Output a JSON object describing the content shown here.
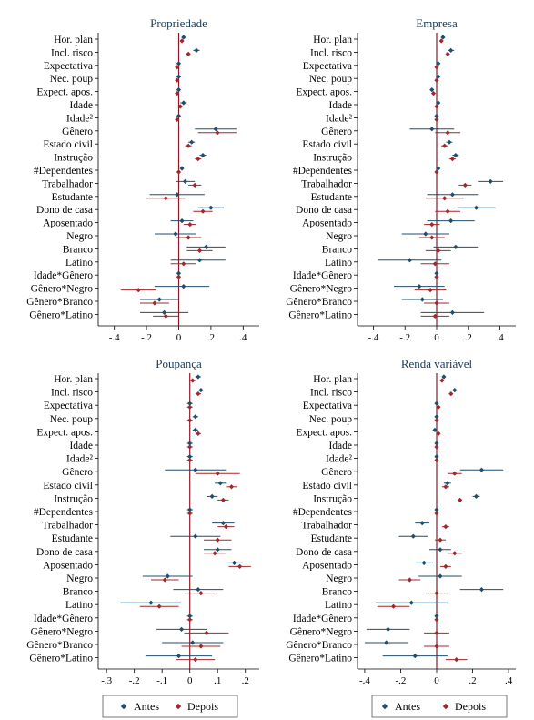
{
  "colors": {
    "antes": "#1f4e6e",
    "depois": "#a0282c",
    "zero_line": "#8b1a2b",
    "axis": "#000000"
  },
  "row_labels": [
    "Hor. plan",
    "Incl. risco",
    "Expectativa",
    "Nec. poup",
    "Expect. apos.",
    "Idade",
    "Idade²",
    "Gênero",
    "Estado civil",
    "Instrução",
    "#Dependentes",
    "Trabalhador",
    "Estudante",
    "Dono de casa",
    "Aposentado",
    "Negro",
    "Branco",
    "Latino",
    "Idade*Gênero",
    "Gênero*Negro",
    "Gênero*Branco",
    "Gênero*Latino"
  ],
  "legend": {
    "antes": "Antes",
    "depois": "Depois"
  },
  "chart_data": [
    {
      "type": "scatter",
      "title": "Propriedade",
      "xlim": [
        -0.5,
        0.5
      ],
      "xticks": [
        -0.4,
        -0.2,
        0,
        0.2,
        0.4
      ],
      "xtick_labels": [
        "-.4",
        "-.2",
        "0",
        ".2",
        ".4"
      ],
      "series": [
        {
          "name": "Antes",
          "values": [
            [
              0.03,
              0.02,
              0.04
            ],
            [
              0.11,
              0.09,
              0.13
            ],
            [
              0.0,
              -0.01,
              0.01
            ],
            [
              0.0,
              -0.01,
              0.01
            ],
            [
              0.0,
              -0.01,
              0.01
            ],
            [
              0.03,
              0.01,
              0.05
            ],
            [
              0.0,
              -0.01,
              0.01
            ],
            [
              0.23,
              0.1,
              0.36
            ],
            [
              0.08,
              0.06,
              0.1
            ],
            [
              0.15,
              0.13,
              0.17
            ],
            [
              0.02,
              0.01,
              0.03
            ],
            [
              0.04,
              -0.02,
              0.1
            ],
            [
              -0.01,
              -0.18,
              0.16
            ],
            [
              0.2,
              0.12,
              0.28
            ],
            [
              0.02,
              -0.05,
              0.09
            ],
            [
              -0.02,
              -0.15,
              0.11
            ],
            [
              0.17,
              0.05,
              0.29
            ],
            [
              0.13,
              -0.05,
              0.29
            ],
            [
              0.0,
              -0.01,
              0.01
            ],
            [
              0.03,
              -0.15,
              0.19
            ],
            [
              -0.12,
              -0.24,
              0.0
            ],
            [
              -0.09,
              -0.24,
              0.06
            ]
          ]
        },
        {
          "name": "Depois",
          "values": [
            [
              0.02,
              0.01,
              0.03
            ],
            [
              0.06,
              0.05,
              0.07
            ],
            [
              -0.01,
              -0.02,
              0.0
            ],
            [
              -0.01,
              -0.02,
              0.0
            ],
            [
              -0.01,
              -0.02,
              0.0
            ],
            [
              0.01,
              0.0,
              0.02
            ],
            [
              -0.01,
              -0.02,
              0.0
            ],
            [
              0.24,
              0.12,
              0.36
            ],
            [
              0.06,
              0.04,
              0.08
            ],
            [
              0.12,
              0.1,
              0.14
            ],
            [
              0.0,
              -0.01,
              0.01
            ],
            [
              0.1,
              0.06,
              0.14
            ],
            [
              -0.08,
              -0.2,
              0.04
            ],
            [
              0.15,
              0.09,
              0.21
            ],
            [
              0.07,
              0.03,
              0.11
            ],
            [
              0.06,
              -0.02,
              0.14
            ],
            [
              0.13,
              0.05,
              0.21
            ],
            [
              0.03,
              -0.05,
              0.11
            ],
            [
              0.0,
              -0.01,
              0.01
            ],
            [
              -0.25,
              -0.36,
              -0.14
            ],
            [
              -0.15,
              -0.24,
              -0.06
            ],
            [
              -0.08,
              -0.16,
              0.0
            ]
          ]
        }
      ]
    },
    {
      "type": "scatter",
      "title": "Empresa",
      "xlim": [
        -0.5,
        0.5
      ],
      "xticks": [
        -0.4,
        -0.2,
        0,
        0.2,
        0.4
      ],
      "xtick_labels": [
        "-.4",
        "-.2",
        "0",
        ".2",
        ".4"
      ],
      "series": [
        {
          "name": "Antes",
          "values": [
            [
              0.04,
              0.03,
              0.05
            ],
            [
              0.09,
              0.07,
              0.11
            ],
            [
              0.01,
              0.0,
              0.02
            ],
            [
              0.01,
              0.0,
              0.02
            ],
            [
              -0.03,
              -0.04,
              -0.02
            ],
            [
              0.01,
              0.0,
              0.02
            ],
            [
              0.0,
              -0.01,
              0.01
            ],
            [
              -0.03,
              -0.17,
              0.11
            ],
            [
              0.08,
              0.06,
              0.1
            ],
            [
              0.12,
              0.1,
              0.14
            ],
            [
              0.01,
              0.0,
              0.02
            ],
            [
              0.34,
              0.26,
              0.42
            ],
            [
              0.1,
              -0.06,
              0.26
            ],
            [
              0.25,
              0.13,
              0.37
            ],
            [
              0.09,
              -0.06,
              0.24
            ],
            [
              -0.07,
              -0.22,
              0.08
            ],
            [
              0.12,
              -0.02,
              0.26
            ],
            [
              -0.17,
              -0.37,
              0.03
            ],
            [
              0.0,
              -0.01,
              0.01
            ],
            [
              -0.11,
              -0.27,
              0.05
            ],
            [
              -0.09,
              -0.22,
              0.04
            ],
            [
              0.1,
              -0.1,
              0.3
            ]
          ]
        },
        {
          "name": "Depois",
          "values": [
            [
              0.03,
              0.02,
              0.04
            ],
            [
              0.07,
              0.06,
              0.08
            ],
            [
              0.0,
              -0.01,
              0.01
            ],
            [
              0.0,
              -0.01,
              0.01
            ],
            [
              -0.02,
              -0.03,
              -0.01
            ],
            [
              0.0,
              -0.01,
              0.01
            ],
            [
              0.0,
              -0.01,
              0.01
            ],
            [
              0.07,
              -0.01,
              0.15
            ],
            [
              0.05,
              0.03,
              0.07
            ],
            [
              0.1,
              0.08,
              0.12
            ],
            [
              0.0,
              -0.01,
              0.01
            ],
            [
              0.18,
              0.14,
              0.22
            ],
            [
              0.05,
              -0.07,
              0.17
            ],
            [
              0.07,
              -0.01,
              0.15
            ],
            [
              -0.03,
              -0.08,
              0.02
            ],
            [
              -0.03,
              -0.11,
              0.05
            ],
            [
              0.01,
              -0.07,
              0.09
            ],
            [
              -0.01,
              -0.1,
              0.08
            ],
            [
              0.0,
              -0.01,
              0.01
            ],
            [
              -0.04,
              -0.14,
              0.06
            ],
            [
              0.0,
              -0.08,
              0.08
            ],
            [
              -0.01,
              -0.1,
              0.08
            ]
          ]
        }
      ]
    },
    {
      "type": "scatter",
      "title": "Poupança",
      "xlim": [
        -0.33,
        0.25
      ],
      "xticks": [
        -0.3,
        -0.2,
        -0.1,
        0,
        0.1,
        0.2
      ],
      "xtick_labels": [
        "-.3",
        "-.2",
        "-.1",
        "0",
        ".1",
        ".2"
      ],
      "series": [
        {
          "name": "Antes",
          "values": [
            [
              0.03,
              0.02,
              0.04
            ],
            [
              0.04,
              0.03,
              0.05
            ],
            [
              0.0,
              -0.01,
              0.01
            ],
            [
              0.02,
              0.01,
              0.03
            ],
            [
              0.02,
              0.01,
              0.03
            ],
            [
              0.0,
              -0.01,
              0.01
            ],
            [
              0.0,
              -0.01,
              0.01
            ],
            [
              0.02,
              -0.09,
              0.13
            ],
            [
              0.11,
              0.09,
              0.13
            ],
            [
              0.08,
              0.06,
              0.1
            ],
            [
              0.0,
              -0.01,
              0.01
            ],
            [
              0.12,
              0.08,
              0.16
            ],
            [
              0.02,
              -0.07,
              0.11
            ],
            [
              0.1,
              0.05,
              0.15
            ],
            [
              0.16,
              0.13,
              0.19
            ],
            [
              -0.08,
              -0.17,
              0.01
            ],
            [
              0.03,
              -0.06,
              0.12
            ],
            [
              -0.14,
              -0.25,
              -0.03
            ],
            [
              0.0,
              -0.01,
              0.01
            ],
            [
              -0.03,
              -0.12,
              0.06
            ],
            [
              0.01,
              -0.1,
              0.12
            ],
            [
              -0.04,
              -0.16,
              0.08
            ]
          ]
        },
        {
          "name": "Depois",
          "values": [
            [
              0.01,
              0.0,
              0.02
            ],
            [
              0.03,
              0.02,
              0.04
            ],
            [
              0.0,
              -0.01,
              0.01
            ],
            [
              0.0,
              -0.01,
              0.01
            ],
            [
              0.03,
              0.02,
              0.04
            ],
            [
              0.0,
              -0.01,
              0.01
            ],
            [
              0.0,
              -0.01,
              0.01
            ],
            [
              0.1,
              0.02,
              0.18
            ],
            [
              0.15,
              0.13,
              0.17
            ],
            [
              0.12,
              0.1,
              0.14
            ],
            [
              0.0,
              -0.01,
              0.01
            ],
            [
              0.13,
              0.1,
              0.16
            ],
            [
              0.1,
              0.05,
              0.15
            ],
            [
              0.09,
              0.05,
              0.13
            ],
            [
              0.18,
              0.14,
              0.22
            ],
            [
              -0.09,
              -0.14,
              -0.04
            ],
            [
              0.04,
              -0.02,
              0.1
            ],
            [
              -0.11,
              -0.18,
              -0.04
            ],
            [
              0.0,
              -0.01,
              0.01
            ],
            [
              0.06,
              -0.02,
              0.14
            ],
            [
              0.04,
              -0.03,
              0.11
            ],
            [
              0.02,
              -0.05,
              0.09
            ]
          ]
        }
      ]
    },
    {
      "type": "scatter",
      "title": "Renda variável",
      "xlim": [
        -0.44,
        0.44
      ],
      "xticks": [
        -0.4,
        -0.2,
        0,
        0.2,
        0.4
      ],
      "xtick_labels": [
        "-.4",
        "-.2",
        "0",
        ".2",
        ".4"
      ],
      "series": [
        {
          "name": "Antes",
          "values": [
            [
              0.04,
              0.03,
              0.05
            ],
            [
              0.1,
              0.09,
              0.11
            ],
            [
              0.0,
              -0.01,
              0.01
            ],
            [
              0.0,
              -0.01,
              0.01
            ],
            [
              -0.01,
              -0.02,
              0.0
            ],
            [
              0.0,
              -0.01,
              0.01
            ],
            [
              0.0,
              -0.01,
              0.01
            ],
            [
              0.25,
              0.13,
              0.37
            ],
            [
              0.06,
              0.04,
              0.08
            ],
            [
              0.22,
              0.2,
              0.24
            ],
            [
              0.0,
              -0.01,
              0.01
            ],
            [
              -0.08,
              -0.12,
              -0.04
            ],
            [
              -0.13,
              -0.21,
              -0.05
            ],
            [
              0.02,
              -0.04,
              0.08
            ],
            [
              -0.07,
              -0.12,
              -0.02
            ],
            [
              0.02,
              -0.1,
              0.14
            ],
            [
              0.25,
              0.13,
              0.37
            ],
            [
              -0.14,
              -0.34,
              0.06
            ],
            [
              0.0,
              -0.01,
              0.01
            ],
            [
              -0.27,
              -0.39,
              -0.15
            ],
            [
              -0.28,
              -0.4,
              -0.16
            ],
            [
              -0.12,
              -0.3,
              0.06
            ]
          ]
        },
        {
          "name": "Depois",
          "values": [
            [
              0.03,
              0.02,
              0.04
            ],
            [
              0.08,
              0.07,
              0.09
            ],
            [
              0.01,
              0.0,
              0.02
            ],
            [
              0.0,
              -0.01,
              0.01
            ],
            [
              0.01,
              0.0,
              0.02
            ],
            [
              0.0,
              -0.01,
              0.01
            ],
            [
              0.0,
              -0.01,
              0.01
            ],
            [
              0.1,
              0.06,
              0.14
            ],
            [
              0.05,
              0.03,
              0.07
            ],
            [
              0.13,
              0.12,
              0.14
            ],
            [
              0.0,
              -0.01,
              0.01
            ],
            [
              0.05,
              0.03,
              0.07
            ],
            [
              0.02,
              -0.01,
              0.05
            ],
            [
              0.1,
              0.06,
              0.14
            ],
            [
              0.05,
              0.02,
              0.08
            ],
            [
              -0.15,
              -0.21,
              -0.09
            ],
            [
              0.0,
              -0.06,
              0.06
            ],
            [
              -0.24,
              -0.33,
              -0.15
            ],
            [
              0.0,
              -0.01,
              0.01
            ],
            [
              0.0,
              -0.07,
              0.07
            ],
            [
              0.0,
              -0.07,
              0.07
            ],
            [
              0.11,
              0.05,
              0.17
            ]
          ]
        }
      ]
    }
  ]
}
